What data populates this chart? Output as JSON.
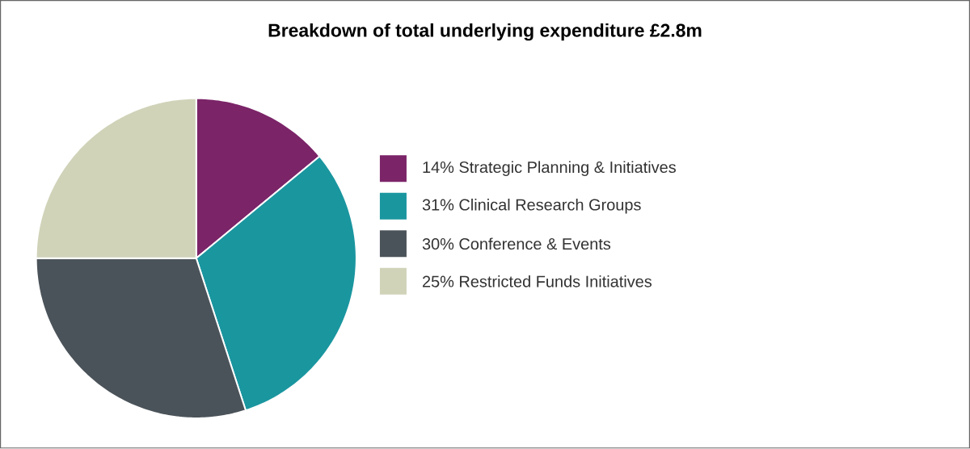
{
  "chart_data": {
    "type": "pie",
    "title": "Breakdown of total underlying expenditure £2.8m",
    "categories": [
      "14% Strategic Planning & Initiatives",
      "31% Clinical Research Groups",
      "30% Conference & Events",
      "25% Restricted Funds Initiatives"
    ],
    "values": [
      14,
      31,
      30,
      25
    ],
    "colors": [
      "#7b2468",
      "#1a969f",
      "#4b535a",
      "#d0d3b8"
    ],
    "legend": "right"
  }
}
